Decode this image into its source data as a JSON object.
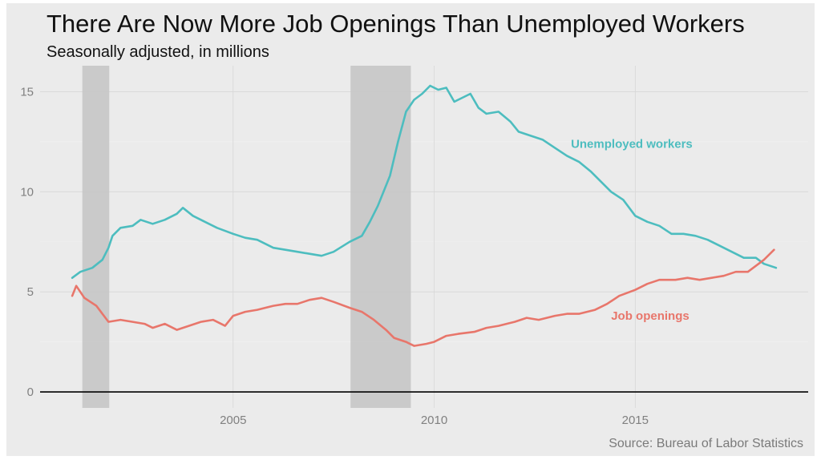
{
  "chart_data": {
    "type": "line",
    "title": "There Are Now More Job Openings Than Unemployed Workers",
    "subtitle": "Seasonally adjusted, in millions",
    "caption": "Source: Bureau of Labor Statistics",
    "xlim": [
      2000.2,
      2019.3
    ],
    "ylim": [
      -0.8,
      16.3
    ],
    "x_ticks": [
      2005,
      2010,
      2015
    ],
    "y_ticks": [
      0,
      5,
      10,
      15
    ],
    "grid": true,
    "recessions": [
      [
        2001.25,
        2001.92
      ],
      [
        2007.92,
        2009.42
      ]
    ],
    "series": [
      {
        "name": "Unemployed workers",
        "color": "#4dbdbf",
        "points": [
          [
            2001.0,
            5.7
          ],
          [
            2001.2,
            6.0
          ],
          [
            2001.5,
            6.2
          ],
          [
            2001.75,
            6.6
          ],
          [
            2001.9,
            7.2
          ],
          [
            2002.0,
            7.8
          ],
          [
            2002.2,
            8.2
          ],
          [
            2002.5,
            8.3
          ],
          [
            2002.7,
            8.6
          ],
          [
            2003.0,
            8.4
          ],
          [
            2003.3,
            8.6
          ],
          [
            2003.6,
            8.9
          ],
          [
            2003.75,
            9.2
          ],
          [
            2004.0,
            8.8
          ],
          [
            2004.3,
            8.5
          ],
          [
            2004.6,
            8.2
          ],
          [
            2005.0,
            7.9
          ],
          [
            2005.3,
            7.7
          ],
          [
            2005.6,
            7.6
          ],
          [
            2006.0,
            7.2
          ],
          [
            2006.3,
            7.1
          ],
          [
            2006.6,
            7.0
          ],
          [
            2006.9,
            6.9
          ],
          [
            2007.2,
            6.8
          ],
          [
            2007.5,
            7.0
          ],
          [
            2007.9,
            7.5
          ],
          [
            2008.2,
            7.8
          ],
          [
            2008.4,
            8.5
          ],
          [
            2008.6,
            9.3
          ],
          [
            2008.9,
            10.8
          ],
          [
            2009.1,
            12.5
          ],
          [
            2009.3,
            14.0
          ],
          [
            2009.5,
            14.6
          ],
          [
            2009.7,
            14.9
          ],
          [
            2009.9,
            15.3
          ],
          [
            2010.1,
            15.1
          ],
          [
            2010.3,
            15.2
          ],
          [
            2010.5,
            14.5
          ],
          [
            2010.7,
            14.7
          ],
          [
            2010.9,
            14.9
          ],
          [
            2011.1,
            14.2
          ],
          [
            2011.3,
            13.9
          ],
          [
            2011.6,
            14.0
          ],
          [
            2011.9,
            13.5
          ],
          [
            2012.1,
            13.0
          ],
          [
            2012.4,
            12.8
          ],
          [
            2012.7,
            12.6
          ],
          [
            2013.0,
            12.2
          ],
          [
            2013.3,
            11.8
          ],
          [
            2013.6,
            11.5
          ],
          [
            2013.9,
            11.0
          ],
          [
            2014.1,
            10.6
          ],
          [
            2014.4,
            10.0
          ],
          [
            2014.7,
            9.6
          ],
          [
            2015.0,
            8.8
          ],
          [
            2015.3,
            8.5
          ],
          [
            2015.6,
            8.3
          ],
          [
            2015.9,
            7.9
          ],
          [
            2016.2,
            7.9
          ],
          [
            2016.5,
            7.8
          ],
          [
            2016.8,
            7.6
          ],
          [
            2017.1,
            7.3
          ],
          [
            2017.4,
            7.0
          ],
          [
            2017.7,
            6.7
          ],
          [
            2018.0,
            6.7
          ],
          [
            2018.2,
            6.4
          ],
          [
            2018.35,
            6.3
          ],
          [
            2018.5,
            6.2
          ]
        ]
      },
      {
        "name": "Job openings",
        "color": "#e8766b",
        "points": [
          [
            2001.0,
            4.8
          ],
          [
            2001.1,
            5.3
          ],
          [
            2001.3,
            4.7
          ],
          [
            2001.6,
            4.3
          ],
          [
            2001.9,
            3.5
          ],
          [
            2002.2,
            3.6
          ],
          [
            2002.5,
            3.5
          ],
          [
            2002.8,
            3.4
          ],
          [
            2003.0,
            3.2
          ],
          [
            2003.3,
            3.4
          ],
          [
            2003.6,
            3.1
          ],
          [
            2003.9,
            3.3
          ],
          [
            2004.2,
            3.5
          ],
          [
            2004.5,
            3.6
          ],
          [
            2004.8,
            3.3
          ],
          [
            2005.0,
            3.8
          ],
          [
            2005.3,
            4.0
          ],
          [
            2005.6,
            4.1
          ],
          [
            2006.0,
            4.3
          ],
          [
            2006.3,
            4.4
          ],
          [
            2006.6,
            4.4
          ],
          [
            2006.9,
            4.6
          ],
          [
            2007.2,
            4.7
          ],
          [
            2007.5,
            4.5
          ],
          [
            2007.9,
            4.2
          ],
          [
            2008.2,
            4.0
          ],
          [
            2008.5,
            3.6
          ],
          [
            2008.8,
            3.1
          ],
          [
            2009.0,
            2.7
          ],
          [
            2009.3,
            2.5
          ],
          [
            2009.5,
            2.3
          ],
          [
            2009.8,
            2.4
          ],
          [
            2010.0,
            2.5
          ],
          [
            2010.3,
            2.8
          ],
          [
            2010.6,
            2.9
          ],
          [
            2011.0,
            3.0
          ],
          [
            2011.3,
            3.2
          ],
          [
            2011.6,
            3.3
          ],
          [
            2012.0,
            3.5
          ],
          [
            2012.3,
            3.7
          ],
          [
            2012.6,
            3.6
          ],
          [
            2013.0,
            3.8
          ],
          [
            2013.3,
            3.9
          ],
          [
            2013.6,
            3.9
          ],
          [
            2014.0,
            4.1
          ],
          [
            2014.3,
            4.4
          ],
          [
            2014.6,
            4.8
          ],
          [
            2015.0,
            5.1
          ],
          [
            2015.3,
            5.4
          ],
          [
            2015.6,
            5.6
          ],
          [
            2016.0,
            5.6
          ],
          [
            2016.3,
            5.7
          ],
          [
            2016.6,
            5.6
          ],
          [
            2016.9,
            5.7
          ],
          [
            2017.2,
            5.8
          ],
          [
            2017.5,
            6.0
          ],
          [
            2017.8,
            6.0
          ],
          [
            2018.0,
            6.3
          ],
          [
            2018.2,
            6.6
          ],
          [
            2018.45,
            7.1
          ]
        ]
      }
    ]
  }
}
